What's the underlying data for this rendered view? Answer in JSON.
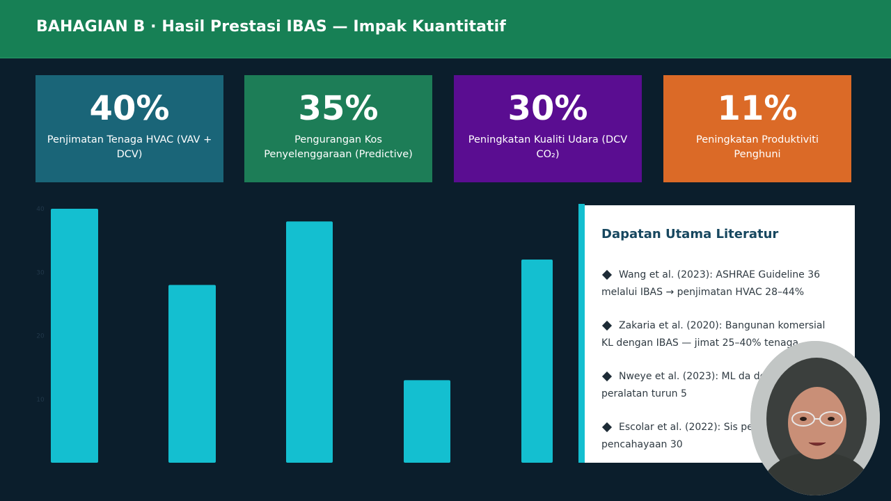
{
  "header": {
    "title": "BAHAGIAN B  ·  Hasil Prestasi IBAS — Impak Kuantitatif",
    "background": "#178055"
  },
  "stats": [
    {
      "value": "40%",
      "label": "Penjimatan Tenaga HVAC (VAV + DCV)",
      "color": "#1a6578"
    },
    {
      "value": "35%",
      "label": "Pengurangan Kos Penyelenggaraan (Predictive)",
      "color": "#1d7d57"
    },
    {
      "value": "30%",
      "label": "Peningkatan Kualiti Udara (DCV CO₂)",
      "color": "#5a0d91"
    },
    {
      "value": "11%",
      "label": "Peningkatan Produktiviti Penghuni",
      "color": "#db6a27"
    }
  ],
  "chart_data": {
    "type": "bar",
    "categories": [
      "",
      "",
      "",
      "",
      ""
    ],
    "values": [
      40,
      28,
      38,
      13,
      32
    ],
    "ylim": [
      0,
      40
    ],
    "yticks": [
      "40",
      "30",
      "20",
      "10"
    ],
    "bar_color": "#14bfd0",
    "grid": false
  },
  "literature": {
    "title": "Dapatan Utama Literatur",
    "items": [
      "Wang et al. (2023): ASHRAE Guideline 36 melalui IBAS → penjimatan HVAC 28–44%",
      "Zakaria et al. (2020): Bangunan komersial KL dengan IBAS — jimat 25–40% tenaga",
      "Nweye et al. (2023): ML da downtime peralatan turun 5",
      "Escolar et al. (2022): Sis penjimatan pencahayaan 30"
    ]
  },
  "webcam": {
    "icon": "presenter-video-feed"
  }
}
